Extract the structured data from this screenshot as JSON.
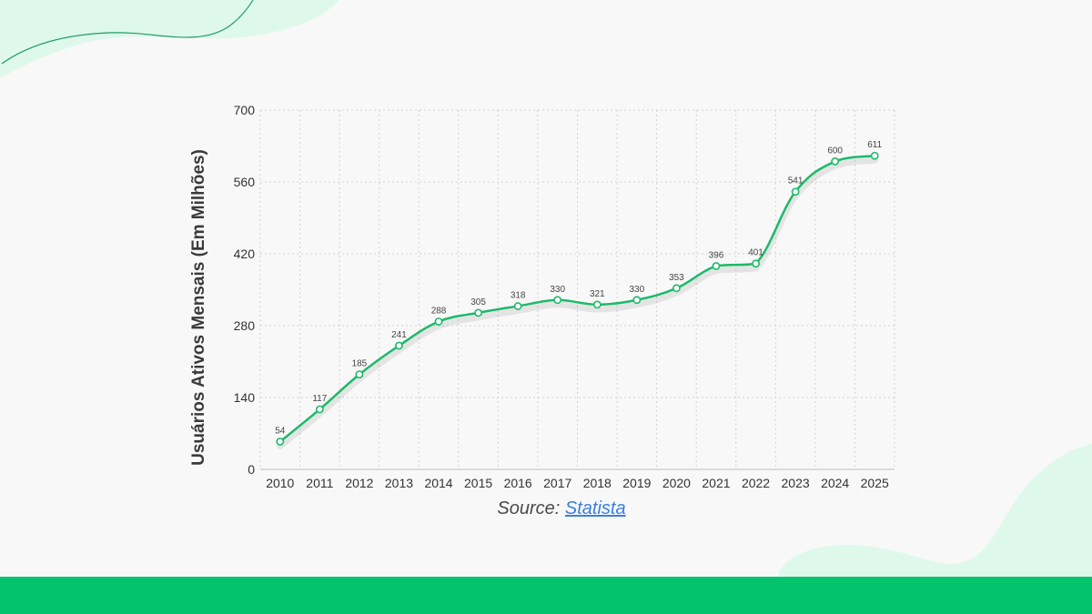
{
  "colors": {
    "line": "#1db96b",
    "footer": "#03c46c",
    "blob": "#dff8ec",
    "grid": "#d2d2d2",
    "link": "#3b7fe0"
  },
  "source": {
    "prefix": "Source:",
    "link_text": "Statista"
  },
  "chart_data": {
    "type": "line",
    "title": "",
    "xlabel": "",
    "ylabel": "Usuários Ativos Mensais (Em Milhões)",
    "categories": [
      "2010",
      "2011",
      "2012",
      "2013",
      "2014",
      "2015",
      "2016",
      "2017",
      "2018",
      "2019",
      "2020",
      "2021",
      "2022",
      "2023",
      "2024",
      "2025"
    ],
    "values": [
      54,
      117,
      185,
      241,
      288,
      305,
      318,
      330,
      321,
      330,
      353,
      396,
      401,
      541,
      600,
      611
    ],
    "ylim": [
      0,
      700
    ],
    "yticks": [
      "0",
      "140",
      "280",
      "420",
      "560",
      "700"
    ],
    "grid": true,
    "legend": "none"
  }
}
